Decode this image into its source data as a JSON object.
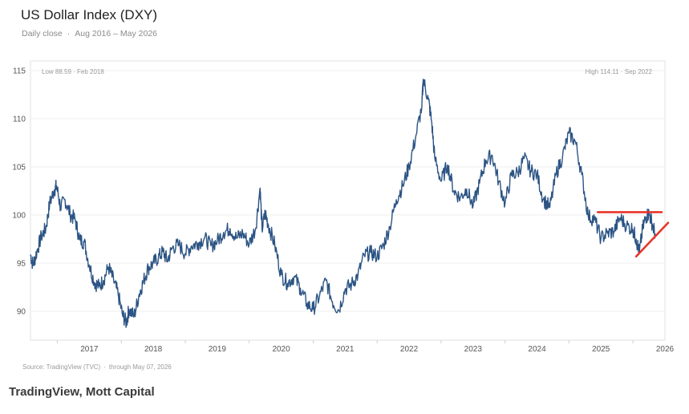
{
  "header": {
    "title": "US Dollar Index (DXY)",
    "subtitle_range_prefix": "Daily close",
    "subtitle_range": "Aug 2016 – May 2026"
  },
  "annotations": {
    "low": {
      "label": "Low 88.59",
      "date": "Feb 2018"
    },
    "high": {
      "label": "High 114.11",
      "date": "Sep 2022"
    }
  },
  "footer": {
    "source": "Source: TradingView (TVC)",
    "through": "through May 07, 2026",
    "credit": "TradingView, Mott Capital"
  },
  "chart_data": {
    "type": "line",
    "title": "US Dollar Index (DXY)",
    "subtitle": "Daily close · Aug 2016 – May 2026",
    "xlabel": "",
    "ylabel": "",
    "xlim": [
      2016.58,
      2026.5
    ],
    "ylim": [
      87,
      116
    ],
    "yticks": [
      90,
      95,
      100,
      105,
      110,
      115
    ],
    "xticks": [
      "2017",
      "2018",
      "2019",
      "2020",
      "2021",
      "2022",
      "2023",
      "2024",
      "2025",
      "2026"
    ],
    "grid": true,
    "line_color": "#2c5484",
    "series": [
      {
        "x": [
          2016.58,
          2016.62,
          2016.68,
          2016.75,
          2016.82,
          2016.88,
          2016.95,
          2016.99,
          2017.05,
          2017.12,
          2017.2,
          2017.28,
          2017.35,
          2017.42,
          2017.5,
          2017.58,
          2017.65,
          2017.72,
          2017.8,
          2017.88,
          2017.95,
          2018.02,
          2018.08,
          2018.12,
          2018.2,
          2018.28,
          2018.35,
          2018.42,
          2018.5,
          2018.58,
          2018.65,
          2018.72,
          2018.8,
          2018.9,
          2019.0,
          2019.1,
          2019.2,
          2019.3,
          2019.4,
          2019.5,
          2019.6,
          2019.7,
          2019.8,
          2019.9,
          2020.0,
          2020.1,
          2020.17,
          2020.2,
          2020.25,
          2020.3,
          2020.4,
          2020.5,
          2020.6,
          2020.7,
          2020.8,
          2020.9,
          2021.0,
          2021.1,
          2021.2,
          2021.3,
          2021.4,
          2021.5,
          2021.6,
          2021.7,
          2021.8,
          2021.9,
          2022.0,
          2022.1,
          2022.2,
          2022.3,
          2022.4,
          2022.5,
          2022.6,
          2022.7,
          2022.72,
          2022.8,
          2022.85,
          2022.9,
          2023.0,
          2023.1,
          2023.2,
          2023.3,
          2023.4,
          2023.5,
          2023.6,
          2023.7,
          2023.8,
          2023.9,
          2024.0,
          2024.1,
          2024.2,
          2024.3,
          2024.4,
          2024.5,
          2024.6,
          2024.7,
          2024.8,
          2024.9,
          2025.0,
          2025.1,
          2025.2,
          2025.3,
          2025.4,
          2025.5,
          2025.6,
          2025.7,
          2025.8,
          2025.9,
          2026.0,
          2026.05,
          2026.1,
          2026.15,
          2026.2,
          2026.25,
          2026.3,
          2026.35
        ],
        "y": [
          95.9,
          94.8,
          96.2,
          97.8,
          98.6,
          101.2,
          102.6,
          103.0,
          100.8,
          101.6,
          100.1,
          99.5,
          97.4,
          97.2,
          94.8,
          93.0,
          92.6,
          93.2,
          94.6,
          93.2,
          91.8,
          89.6,
          88.8,
          90.2,
          89.5,
          91.8,
          93.2,
          94.5,
          95.0,
          95.6,
          96.2,
          95.3,
          96.6,
          96.9,
          96.0,
          96.8,
          97.1,
          97.6,
          96.8,
          97.3,
          98.2,
          98.6,
          97.6,
          98.1,
          97.0,
          98.6,
          102.8,
          98.5,
          100.2,
          99.0,
          96.9,
          93.8,
          92.9,
          93.6,
          92.4,
          90.8,
          90.2,
          91.6,
          93.2,
          91.0,
          90.1,
          92.3,
          92.8,
          93.8,
          95.8,
          96.1,
          95.7,
          96.9,
          98.8,
          101.6,
          103.0,
          105.1,
          108.0,
          111.3,
          114.1,
          112.0,
          109.8,
          106.0,
          103.5,
          105.2,
          102.5,
          101.8,
          102.7,
          100.9,
          103.3,
          105.7,
          106.2,
          103.5,
          101.2,
          104.1,
          104.4,
          105.9,
          104.6,
          104.2,
          101.6,
          100.8,
          104.3,
          106.1,
          108.5,
          107.6,
          104.2,
          99.9,
          99.5,
          97.6,
          98.1,
          98.3,
          99.7,
          98.9,
          98.5,
          97.5,
          96.1,
          98.5,
          99.8,
          100.2,
          99.1,
          98.0
        ]
      }
    ],
    "annotations": [
      {
        "label": "Low 88.59",
        "date": "Feb 2018"
      },
      {
        "label": "High 114.11",
        "date": "Sep 2022"
      }
    ],
    "trendlines": [
      {
        "type": "horizontal",
        "color": "#e8352a",
        "x": [
          2025.45,
          2026.45
        ],
        "y": [
          100.3,
          100.3
        ]
      },
      {
        "type": "rising",
        "color": "#e8352a",
        "x": [
          2026.05,
          2026.55
        ],
        "y": [
          95.7,
          99.2
        ]
      }
    ]
  }
}
